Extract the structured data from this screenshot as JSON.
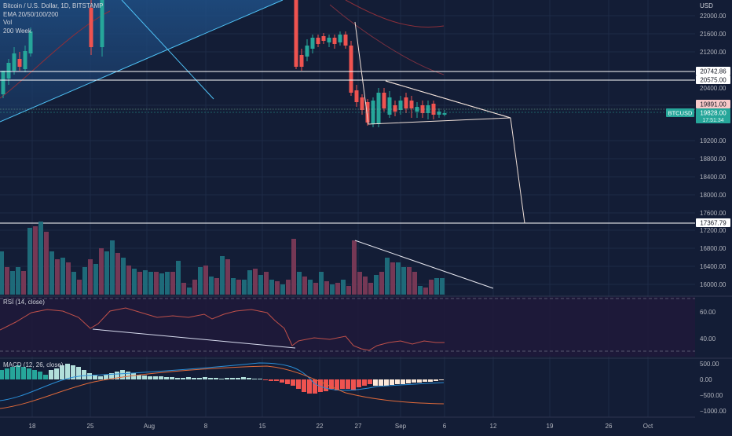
{
  "legend": {
    "symbol_line": "Bitcoin / U.S. Dollar, 1D, BITSTAMP",
    "ema_line": "EMA 20/50/100/200",
    "vol_line": "Vol",
    "week_line": "200 Week"
  },
  "currency": "USD",
  "price_axis": {
    "labels": [
      "22000.00",
      "21600.00",
      "21200.00",
      "20400.00",
      "19200.00",
      "18800.00",
      "18400.00",
      "18000.00",
      "17600.00",
      "17200.00",
      "16800.00",
      "16400.00",
      "16000.00"
    ],
    "badges": {
      "level_upper": "20742.86",
      "level_lower": "20575.00",
      "prev_close": "19891.00",
      "current": "19828.00",
      "countdown": "17:51:34",
      "support": "17367.79"
    },
    "symbol_tag": "BTCUSD"
  },
  "rsi": {
    "label": "RSI (14, close)",
    "axis": [
      "60.00",
      "40.00"
    ]
  },
  "macd": {
    "label": "MACD (12, 26, close)",
    "axis": [
      "500.00",
      "0.00",
      "−500.00",
      "−1000.00"
    ]
  },
  "time_axis": {
    "labels": [
      "18",
      "25",
      "Aug",
      "8",
      "15",
      "22",
      "27",
      "Sep",
      "6",
      "12",
      "19",
      "26",
      "Oct"
    ]
  },
  "colors": {
    "background": "#131d36",
    "up": "#26a69a",
    "down": "#ef5350",
    "line_white": "#ffffff",
    "ema_red": "#8c2f3a",
    "trendline_blue": "#4fc3f7"
  }
}
